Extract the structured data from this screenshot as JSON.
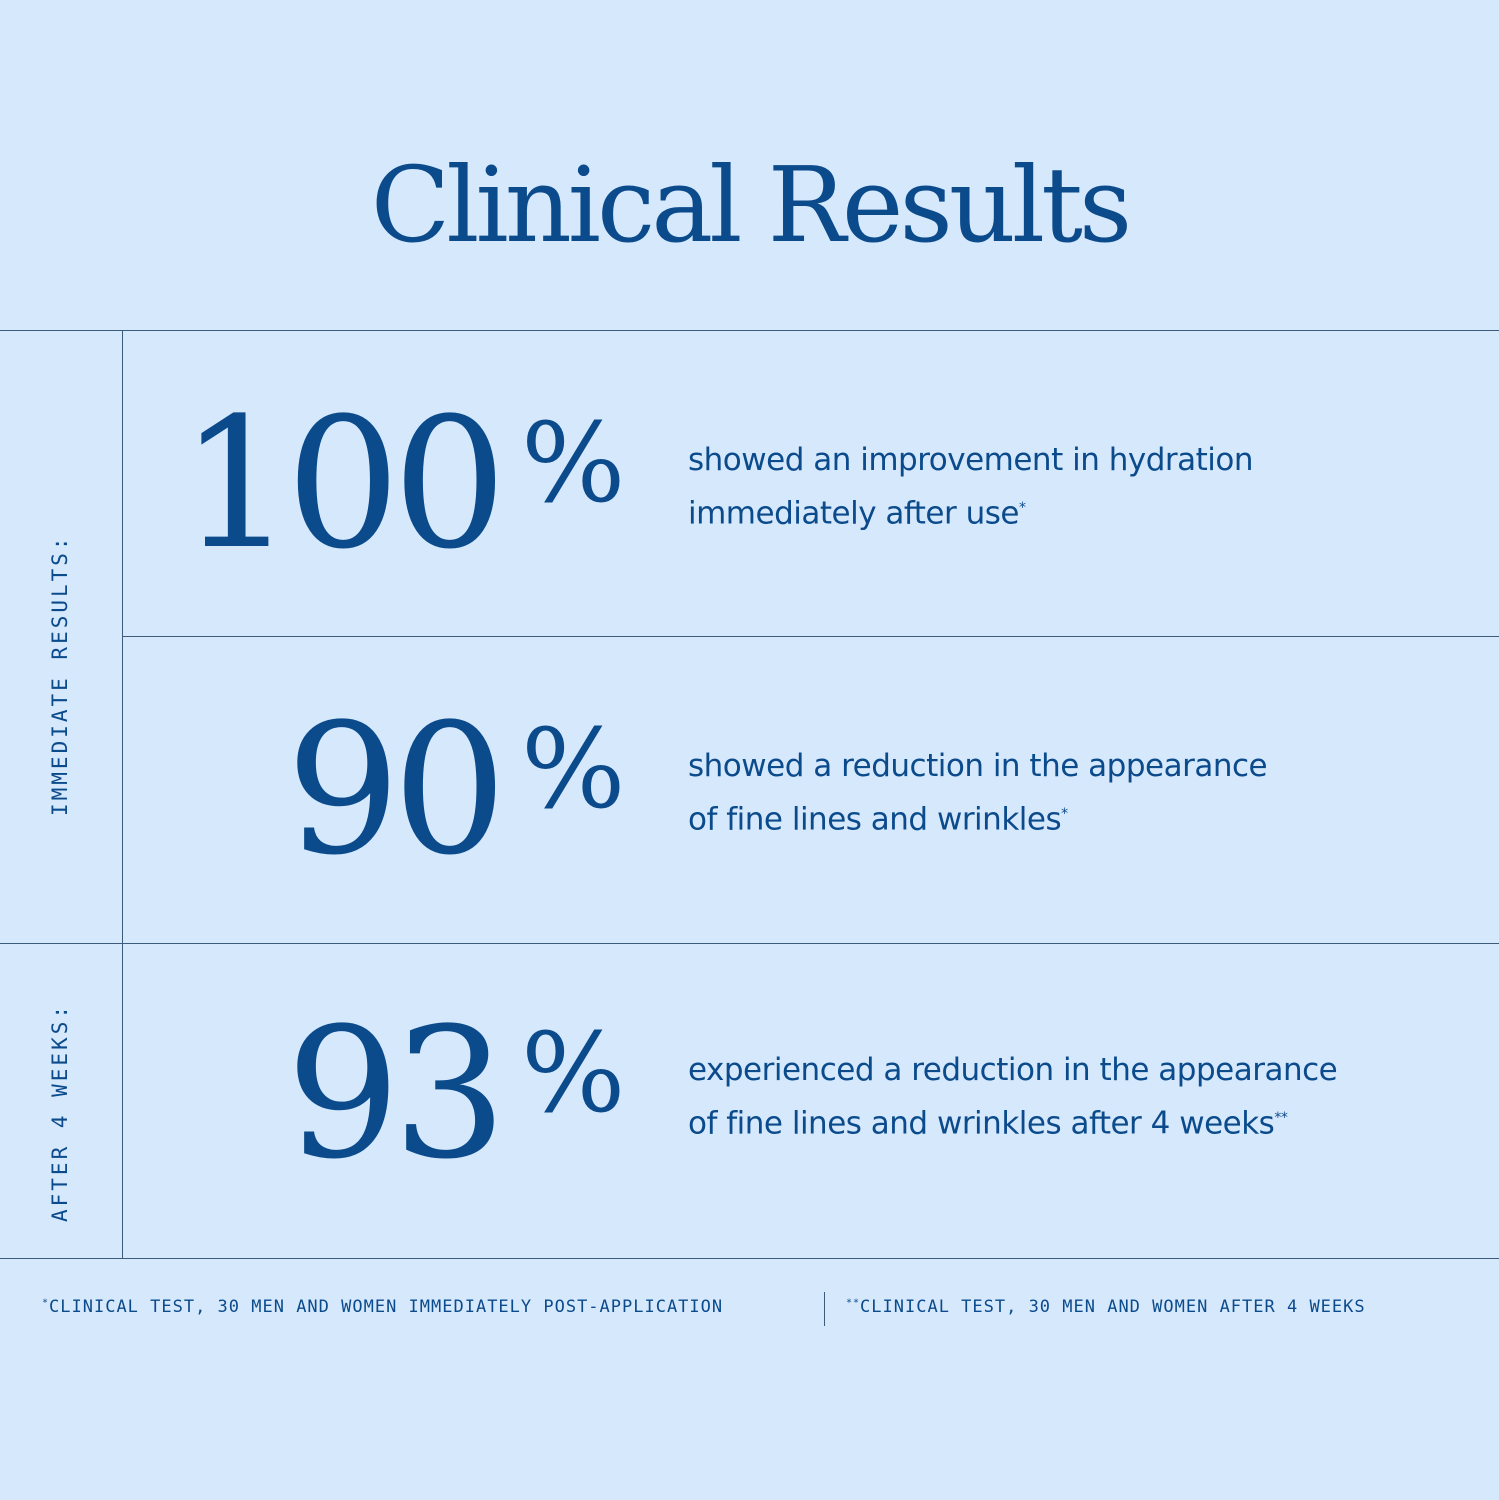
{
  "title": "Clinical Results",
  "sections": [
    {
      "label": "IMMEDIATE RESULTS:"
    },
    {
      "label": "AFTER 4 WEEKS:"
    }
  ],
  "stats": [
    {
      "value": "100",
      "unit": "%",
      "line1": "showed an improvement in hydration",
      "line2": "immediately after use",
      "mark": "*"
    },
    {
      "value": "90",
      "unit": "%",
      "line1": "showed a reduction in the appearance",
      "line2": "of fine lines and wrinkles",
      "mark": "*"
    },
    {
      "value": "93",
      "unit": "%",
      "line1": "experienced a reduction in the appearance",
      "line2": "of fine lines and wrinkles after 4 weeks",
      "mark": "**"
    }
  ],
  "footnotes": [
    {
      "mark": "*",
      "text": "CLINICAL TEST, 30 MEN AND WOMEN IMMEDIATELY POST-APPLICATION"
    },
    {
      "mark": "**",
      "text": "CLINICAL TEST, 30 MEN AND WOMEN AFTER 4 WEEKS"
    }
  ],
  "colors": {
    "background": "#d6e8fc",
    "text": "#0b4b8c",
    "rule": "#3d5c7c"
  }
}
